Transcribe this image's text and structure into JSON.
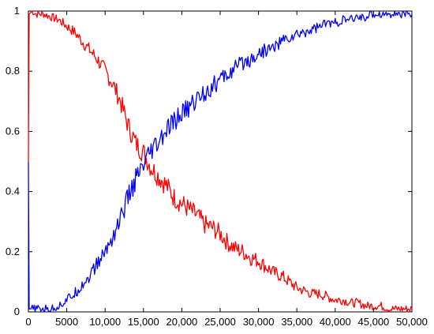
{
  "chart_data": {
    "type": "line",
    "title": "",
    "xlabel": "",
    "ylabel": "",
    "xlim": [
      0,
      50000
    ],
    "ylim": [
      0,
      1
    ],
    "grid": false,
    "legend": "none",
    "x_ticks": [
      0,
      5000,
      10000,
      15000,
      20000,
      25000,
      30000,
      35000,
      40000,
      45000,
      50000
    ],
    "x_tick_labels": [
      "0",
      "5000",
      "10,000",
      "15,000",
      "20,000",
      "25,000",
      "30,000",
      "35,000",
      "40,000",
      "45,000",
      "50,000"
    ],
    "y_ticks": [
      0,
      0.2,
      0.4,
      0.6,
      0.8,
      1
    ],
    "y_tick_labels": [
      "0",
      "0.2",
      "0.4",
      "0.6",
      "0.8",
      "1"
    ],
    "series": [
      {
        "color": "#ff0000",
        "x": [
          0,
          100,
          500,
          1000,
          2000,
          3000,
          4000,
          5000,
          6000,
          7000,
          8000,
          9000,
          10000,
          11000,
          12000,
          13000,
          14000,
          15000,
          16000,
          17000,
          18000,
          19000,
          20000,
          21000,
          22000,
          23000,
          24000,
          25000,
          26000,
          27000,
          28000,
          29000,
          30000,
          31000,
          32000,
          33000,
          34000,
          35000,
          36000,
          37000,
          38000,
          39000,
          40000,
          41000,
          42000,
          43000,
          44000,
          45000,
          46000,
          47000,
          48000,
          49000,
          50000
        ],
        "values": [
          0.5,
          0.99,
          1.0,
          0.99,
          0.99,
          0.98,
          0.97,
          0.95,
          0.93,
          0.9,
          0.87,
          0.84,
          0.8,
          0.76,
          0.7,
          0.62,
          0.56,
          0.53,
          0.48,
          0.45,
          0.42,
          0.38,
          0.36,
          0.34,
          0.32,
          0.29,
          0.28,
          0.26,
          0.23,
          0.21,
          0.2,
          0.18,
          0.17,
          0.15,
          0.13,
          0.12,
          0.1,
          0.08,
          0.07,
          0.06,
          0.06,
          0.05,
          0.04,
          0.04,
          0.03,
          0.03,
          0.02,
          0.02,
          0.02,
          0.01,
          0.01,
          0.01,
          0.01
        ]
      },
      {
        "color": "#0000ff",
        "x": [
          0,
          100,
          500,
          1000,
          2000,
          3000,
          4000,
          5000,
          6000,
          7000,
          8000,
          9000,
          10000,
          11000,
          12000,
          13000,
          14000,
          15000,
          16000,
          17000,
          18000,
          19000,
          20000,
          21000,
          22000,
          23000,
          24000,
          25000,
          26000,
          27000,
          28000,
          29000,
          30000,
          31000,
          32000,
          33000,
          34000,
          35000,
          36000,
          37000,
          38000,
          39000,
          40000,
          41000,
          42000,
          43000,
          44000,
          45000,
          46000,
          47000,
          48000,
          49000,
          50000
        ],
        "values": [
          0.5,
          0.01,
          0.01,
          0.01,
          0.01,
          0.01,
          0.02,
          0.04,
          0.06,
          0.09,
          0.12,
          0.16,
          0.2,
          0.25,
          0.31,
          0.38,
          0.44,
          0.48,
          0.53,
          0.56,
          0.6,
          0.63,
          0.66,
          0.68,
          0.71,
          0.73,
          0.75,
          0.77,
          0.79,
          0.81,
          0.83,
          0.84,
          0.86,
          0.87,
          0.88,
          0.9,
          0.91,
          0.92,
          0.93,
          0.94,
          0.95,
          0.96,
          0.96,
          0.97,
          0.97,
          0.98,
          0.98,
          0.99,
          0.99,
          0.99,
          0.99,
          0.99,
          0.99
        ]
      }
    ]
  }
}
